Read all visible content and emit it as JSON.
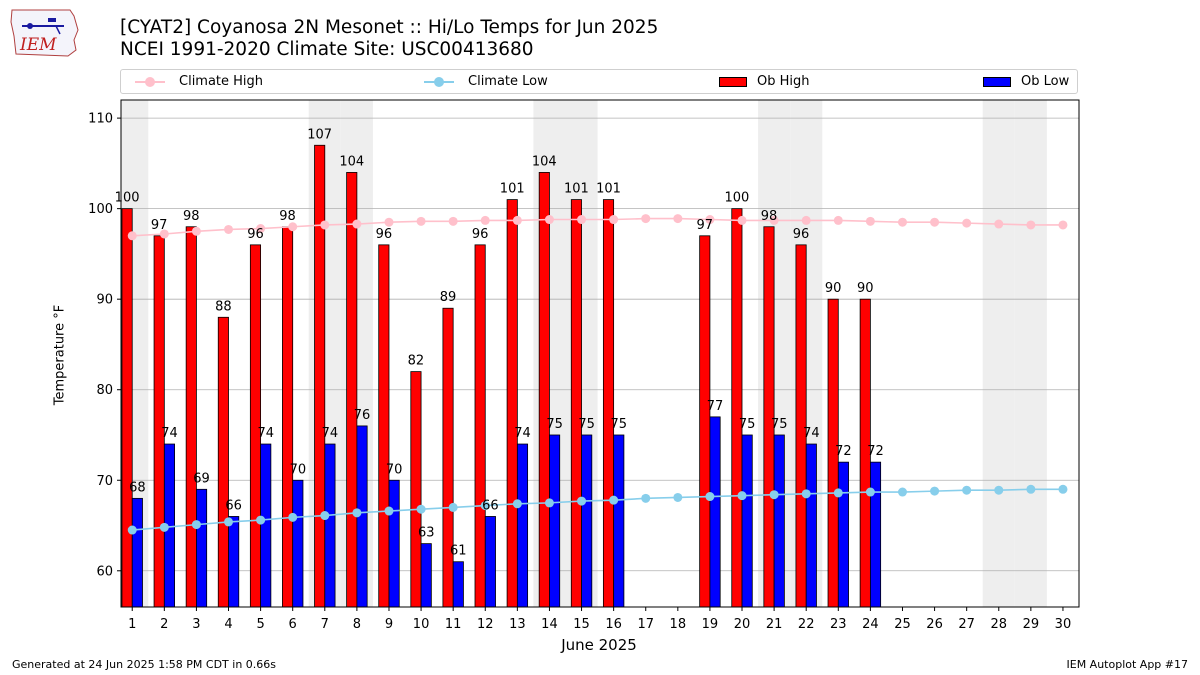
{
  "header": {
    "title_line1": "[CYAT2] Coyanosa 2N Mesonet :: Hi/Lo Temps for Jun 2025",
    "title_line2": "NCEI 1991-2020 Climate Site: USC00413680",
    "logo_text": "IEM"
  },
  "legend": {
    "climate_high": "Climate High",
    "climate_low": "Climate Low",
    "ob_high": "Ob High",
    "ob_low": "Ob Low"
  },
  "colors": {
    "ob_high": "#ff0000",
    "ob_low": "#0000ff",
    "climate_high": "#ffc0cb",
    "climate_low": "#87ceeb",
    "weekend_shade": "#eeeeee"
  },
  "chart_data": {
    "type": "bar",
    "title": "[CYAT2] Coyanosa 2N Mesonet :: Hi/Lo Temps for Jun 2025",
    "xlabel": "June 2025",
    "ylabel": "Temperature °F",
    "ylim": [
      56,
      112
    ],
    "yticks": [
      60,
      70,
      80,
      90,
      100,
      110
    ],
    "grid": true,
    "legend_position": "top",
    "days": [
      1,
      2,
      3,
      4,
      5,
      6,
      7,
      8,
      9,
      10,
      11,
      12,
      13,
      14,
      15,
      16,
      17,
      18,
      19,
      20,
      21,
      22,
      23,
      24,
      25,
      26,
      27,
      28,
      29,
      30
    ],
    "shaded_days": [
      1,
      7,
      8,
      14,
      15,
      21,
      22,
      28,
      29
    ],
    "series": [
      {
        "name": "Ob High",
        "kind": "bar",
        "values": [
          100,
          97,
          98,
          88,
          96,
          98,
          107,
          104,
          96,
          82,
          89,
          96,
          101,
          104,
          101,
          101,
          null,
          null,
          97,
          100,
          98,
          96,
          90,
          90,
          null,
          null,
          null,
          null,
          null,
          null
        ]
      },
      {
        "name": "Ob Low",
        "kind": "bar",
        "values": [
          68,
          74,
          69,
          66,
          74,
          70,
          74,
          76,
          70,
          63,
          61,
          66,
          74,
          75,
          75,
          75,
          null,
          null,
          77,
          75,
          75,
          74,
          72,
          72,
          null,
          null,
          null,
          null,
          null,
          null
        ]
      },
      {
        "name": "Climate High",
        "kind": "line",
        "values": [
          97.0,
          97.2,
          97.5,
          97.7,
          97.8,
          98.0,
          98.2,
          98.3,
          98.5,
          98.6,
          98.6,
          98.7,
          98.7,
          98.8,
          98.8,
          98.8,
          98.9,
          98.9,
          98.8,
          98.7,
          98.7,
          98.7,
          98.7,
          98.6,
          98.5,
          98.5,
          98.4,
          98.3,
          98.2,
          98.2
        ]
      },
      {
        "name": "Climate Low",
        "kind": "line",
        "values": [
          64.5,
          64.8,
          65.1,
          65.4,
          65.6,
          65.9,
          66.1,
          66.4,
          66.6,
          66.8,
          67.0,
          67.2,
          67.4,
          67.5,
          67.7,
          67.8,
          68.0,
          68.1,
          68.2,
          68.3,
          68.4,
          68.5,
          68.6,
          68.7,
          68.7,
          68.8,
          68.9,
          68.9,
          69.0,
          69.0
        ]
      }
    ]
  },
  "footer": {
    "generated": "Generated at 24 Jun 2025 1:58 PM CDT in 0.66s",
    "app": "IEM Autoplot App #17"
  }
}
